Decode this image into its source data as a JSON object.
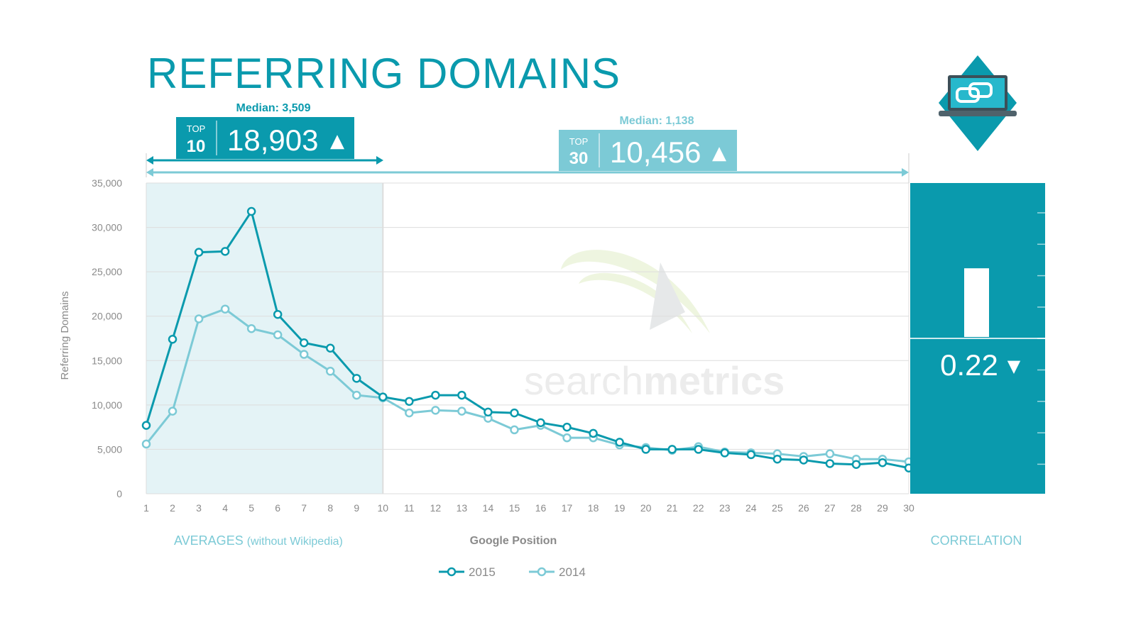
{
  "title": "REFERRING DOMAINS",
  "top10": {
    "median_label": "Median: 3,509",
    "top_word": "TOP",
    "top_num": "10",
    "value": "18,903",
    "arrow": "▲"
  },
  "top30": {
    "median_label": "Median: 1,138",
    "top_word": "TOP",
    "top_num": "30",
    "value": "10,456",
    "arrow": "▲"
  },
  "correlation": {
    "value_label": "0.22",
    "arrow": "▼",
    "value": 0.22,
    "caption": "CORRELATION"
  },
  "averages_label": {
    "main": "AVERAGES",
    "sub": "(without Wikipedia)"
  },
  "watermark": {
    "light": "search",
    "bold": "metrics"
  },
  "colors": {
    "dark": "#0a9aad",
    "light": "#7ccad6",
    "shade": "#e4f3f6",
    "grid": "#dddddd",
    "axis_text": "#8a8a8a"
  },
  "chart_data": {
    "type": "line",
    "xlabel": "Google Position",
    "ylabel": "Referring Domains",
    "ylim": [
      0,
      35000
    ],
    "yticks": [
      0,
      5000,
      10000,
      15000,
      20000,
      25000,
      30000,
      35000
    ],
    "ytick_labels": [
      "0",
      "5,000",
      "10,000",
      "15,000",
      "20,000",
      "25,000",
      "30,000",
      "35,000"
    ],
    "x": [
      1,
      2,
      3,
      4,
      5,
      6,
      7,
      8,
      9,
      10,
      11,
      12,
      13,
      14,
      15,
      16,
      17,
      18,
      19,
      20,
      21,
      22,
      23,
      24,
      25,
      26,
      27,
      28,
      29,
      30
    ],
    "grid": true,
    "legend_position": "bottom",
    "series": [
      {
        "name": "2015",
        "values": [
          7700,
          17400,
          27200,
          27300,
          31800,
          20200,
          17000,
          16400,
          13000,
          10900,
          10400,
          11100,
          11100,
          9200,
          9100,
          8000,
          7500,
          6800,
          5800,
          5000,
          5000,
          5000,
          4600,
          4400,
          3900,
          3800,
          3400,
          3300,
          3500,
          2900
        ]
      },
      {
        "name": "2014",
        "values": [
          5600,
          9300,
          19700,
          20800,
          18600,
          17900,
          15700,
          13800,
          11100,
          10800,
          9100,
          9400,
          9300,
          8500,
          7200,
          7700,
          6300,
          6300,
          5500,
          5200,
          4900,
          5300,
          4700,
          4600,
          4500,
          4200,
          4500,
          3900,
          3900,
          3600
        ]
      }
    ]
  }
}
